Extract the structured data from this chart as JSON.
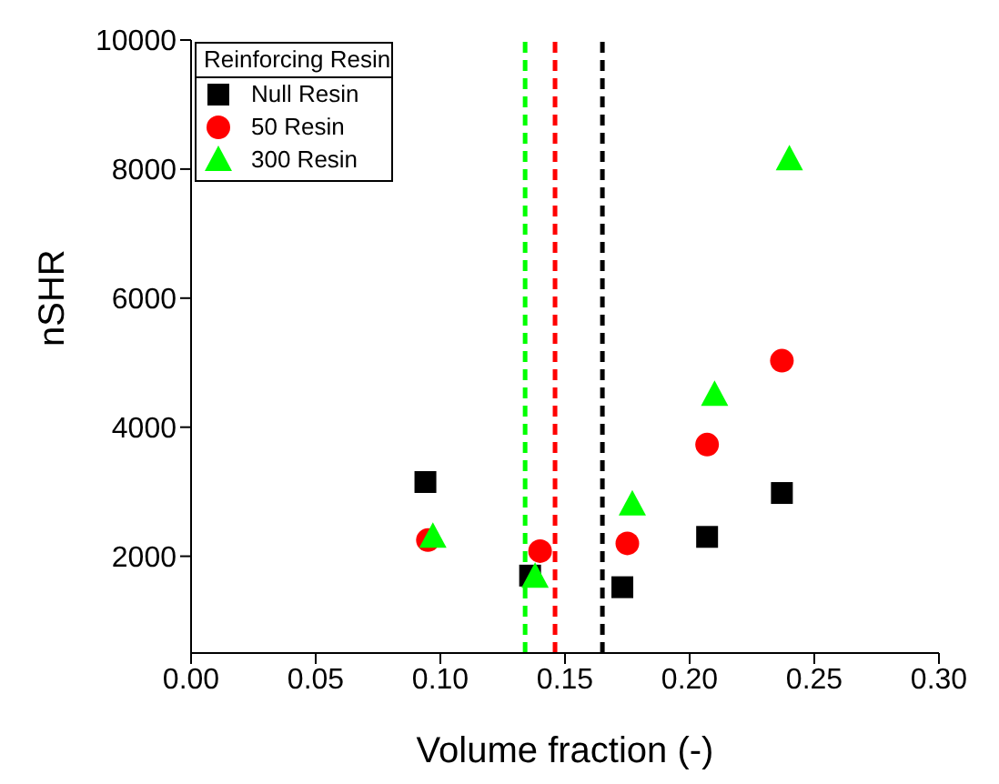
{
  "chart_data": {
    "type": "scatter",
    "xlabel": "Volume fraction (-)",
    "ylabel": "nSHR",
    "legend_title": "Reinforcing Resin",
    "legend": "top left",
    "grid": false,
    "xlim": [
      0,
      0.3
    ],
    "xticks": [
      {
        "value": 0,
        "label": "0.00"
      },
      {
        "value": 0.05,
        "label": "0.05"
      },
      {
        "value": 0.1,
        "label": "0.10"
      },
      {
        "value": 0.15,
        "label": "0.15"
      },
      {
        "value": 0.2,
        "label": "0.20"
      },
      {
        "value": 0.25,
        "label": "0.25"
      },
      {
        "value": 0.3,
        "label": "0.30"
      }
    ],
    "ylim": [
      500,
      10000
    ],
    "yticks": [
      2000,
      4000,
      6000,
      8000,
      10000
    ],
    "series": [
      {
        "name": "Null Resin",
        "color": "#000000",
        "marker": "square",
        "x": [
          0.094,
          0.136,
          0.173,
          0.207,
          0.237
        ],
        "values": [
          3150,
          1700,
          1520,
          2300,
          2980
        ]
      },
      {
        "name": "50 Resin",
        "color": "#ff0000",
        "marker": "circle",
        "x": [
          0.095,
          0.14,
          0.175,
          0.207,
          0.237
        ],
        "values": [
          2250,
          2080,
          2200,
          3730,
          5030
        ]
      },
      {
        "name": "300 Resin",
        "color": "#00ff00",
        "marker": "triangle",
        "x": [
          0.097,
          0.138,
          0.177,
          0.21,
          0.24
        ],
        "values": [
          2300,
          1680,
          2800,
          4500,
          8150
        ]
      }
    ],
    "ref_lines": [
      {
        "axis": "x",
        "value": 0.134,
        "color": "#00ff00",
        "line_style": "dashed"
      },
      {
        "axis": "x",
        "value": 0.146,
        "color": "#ff0000",
        "line_style": "dashed"
      },
      {
        "axis": "x",
        "value": 0.165,
        "color": "#000000",
        "line_style": "dashed"
      }
    ]
  }
}
